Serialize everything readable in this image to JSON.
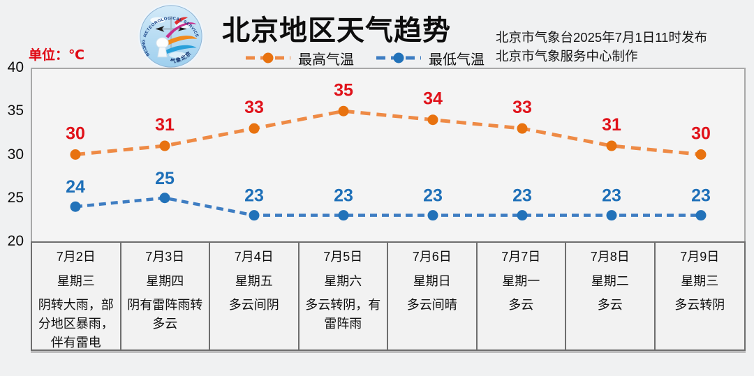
{
  "header": {
    "title": "北京地区天气趋势",
    "issuer_line1": "北京市气象台2025年7月1日11时发布",
    "issuer_line2": "北京市气象服务中心制作",
    "unit_label": "单位：℃",
    "logo_text_top": "METEOROLOGICAL SERVICE",
    "logo_text_left": "BEIJING",
    "logo_text_bottom": "气象北京"
  },
  "chart_data": {
    "type": "line",
    "title": "北京地区天气趋势",
    "unit": "℃",
    "categories": [
      "7月2日",
      "7月3日",
      "7月4日",
      "7月5日",
      "7月6日",
      "7月7日",
      "7月8日",
      "7月9日"
    ],
    "series": [
      {
        "name": "最高气温",
        "values": [
          30,
          31,
          33,
          35,
          34,
          33,
          31,
          30
        ],
        "line_color": "#EE8A45",
        "marker_color": "#E8720F",
        "label_color": "#E0121A",
        "line_width": 5,
        "dash": "14 9",
        "label_offset": 22
      },
      {
        "name": "最低气温",
        "values": [
          24,
          25,
          23,
          23,
          23,
          23,
          23,
          23
        ],
        "line_color": "#3E7DC2",
        "marker_color": "#2272B9",
        "label_color": "#1D6FB8",
        "line_width": 4.5,
        "dash": "10 7",
        "label_offset": 20
      }
    ],
    "ylim": [
      20,
      40
    ],
    "yticks": [
      40,
      35,
      30,
      25,
      20
    ],
    "grid": false,
    "legend_position": "top-center"
  },
  "days": [
    {
      "date": "7月2日",
      "weekday": "星期三",
      "weather": "阴转大雨，部分地区暴雨，伴有雷电"
    },
    {
      "date": "7月3日",
      "weekday": "星期四",
      "weather": "阴有雷阵雨转多云"
    },
    {
      "date": "7月4日",
      "weekday": "星期五",
      "weather": "多云间阴"
    },
    {
      "date": "7月5日",
      "weekday": "星期六",
      "weather": "多云转阴，有雷阵雨"
    },
    {
      "date": "7月6日",
      "weekday": "星期日",
      "weather": "多云间晴"
    },
    {
      "date": "7月7日",
      "weekday": "星期一",
      "weather": "多云"
    },
    {
      "date": "7月8日",
      "weekday": "星期二",
      "weather": "多云"
    },
    {
      "date": "7月9日",
      "weekday": "星期三",
      "weather": "多云转阴"
    }
  ],
  "colors": {
    "page_background": "#f0f1f2",
    "plot_background": "#f4f4f4",
    "plot_border": "#a8a8a8",
    "table_border": "#6e6e6e",
    "axis_text": "#0b0b0b",
    "unit_text": "#e00914",
    "title_text": "#0d0d0d"
  }
}
